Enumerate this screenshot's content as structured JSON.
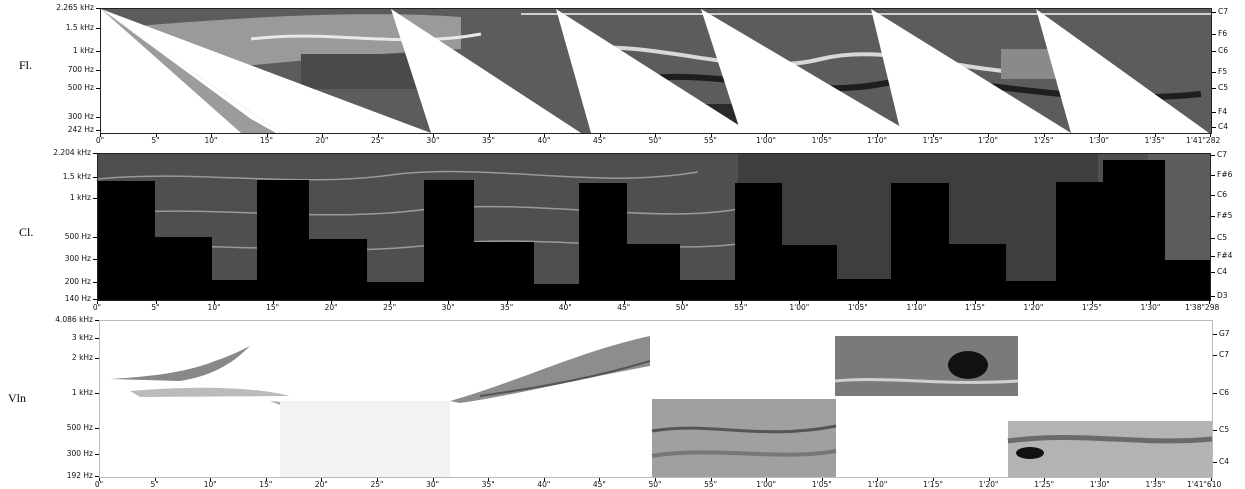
{
  "panels": [
    {
      "instrument": "Fl.",
      "freq_labels": [
        "2.265 kHz",
        "1.5 kHz",
        "1 kHz",
        "700 Hz",
        "500 Hz",
        "300 Hz",
        "242 Hz"
      ],
      "note_labels": [
        "C7",
        "F6",
        "C6",
        "F5",
        "C5",
        "F4",
        "C4"
      ],
      "time_labels": [
        "0\"",
        "5\"",
        "10\"",
        "15\"",
        "20\"",
        "25\"",
        "30\"",
        "35\"",
        "40\"",
        "45\"",
        "50\"",
        "55\"",
        "1'00\"",
        "1'05\"",
        "1'10\"",
        "1'15\"",
        "1'20\"",
        "1'25\"",
        "1'30\"",
        "1'35\"",
        "1'41\"282"
      ]
    },
    {
      "instrument": "Cl.",
      "freq_labels": [
        "2.204 kHz",
        "1.5 kHz",
        "1 kHz",
        "500 Hz",
        "300 Hz",
        "200 Hz",
        "140 Hz"
      ],
      "note_labels": [
        "C7",
        "F#6",
        "C6",
        "F#5",
        "C5",
        "F#4",
        "C4",
        "D3"
      ],
      "time_labels": [
        "0\"",
        "5\"",
        "10\"",
        "15\"",
        "20\"",
        "25\"",
        "30\"",
        "35\"",
        "40\"",
        "45\"",
        "50\"",
        "55\"",
        "1'00\"",
        "1'05\"",
        "1'10\"",
        "1'15\"",
        "1'20\"",
        "1'25\"",
        "1'30\"",
        "1'38\"298"
      ]
    },
    {
      "instrument": "Vln",
      "freq_labels": [
        "4.086 kHz",
        "3 kHz",
        "2 kHz",
        "1 kHz",
        "500 Hz",
        "300 Hz",
        "192 Hz"
      ],
      "note_labels": [
        "G7",
        "C7",
        "C6",
        "C5",
        "C4"
      ],
      "time_labels": [
        "0\"",
        "5\"",
        "10\"",
        "15\"",
        "20\"",
        "25\"",
        "30\"",
        "35\"",
        "40\"",
        "45\"",
        "50\"",
        "55\"",
        "1'00\"",
        "1'05\"",
        "1'10\"",
        "1'15\"",
        "1'20\"",
        "1'25\"",
        "1'30\"",
        "1'35\"",
        "1'41\"610"
      ]
    }
  ],
  "colors": {
    "dark": "#222222",
    "mid": "#6e6e6e",
    "light": "#bdbdbd",
    "black": "#000000",
    "white": "#ffffff"
  }
}
